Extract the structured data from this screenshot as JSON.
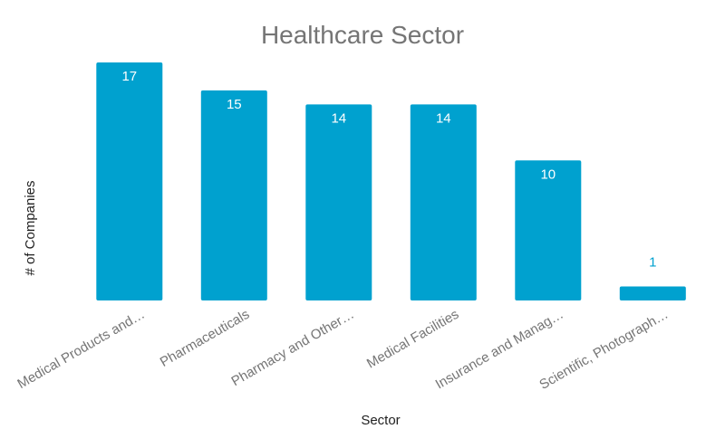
{
  "chart_data": {
    "type": "bar",
    "title": "Healthcare Sector",
    "xlabel": "Sector",
    "ylabel": "# of Companies",
    "categories": [
      "Medical Products and…",
      "Pharmaceuticals",
      "Pharmacy and Other…",
      "Medical Facilities",
      "Insurance and Manag…",
      "Scientific, Photograph…"
    ],
    "values": [
      17,
      15,
      14,
      14,
      10,
      1
    ],
    "ylim": [
      0,
      17
    ],
    "grid": false,
    "legend": "none",
    "bar_color": "#00a1cf"
  }
}
